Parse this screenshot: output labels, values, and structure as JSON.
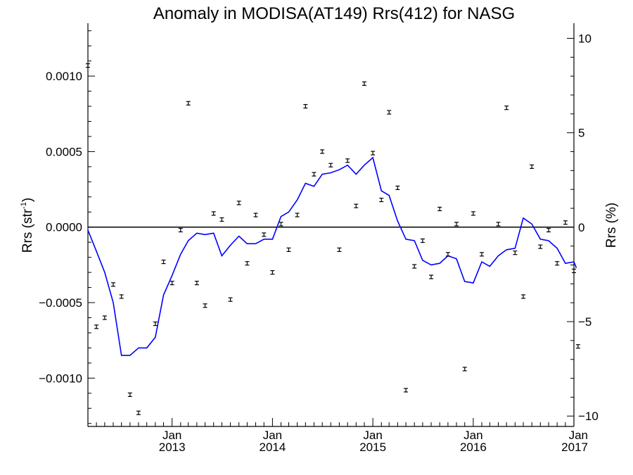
{
  "chart_data": {
    "type": "scatter",
    "title": "Anomaly in MODISA(AT149) Rrs(412) for NASG",
    "ylabel_left": "Rrs (str",
    "ylabel_left_sup": "-1",
    "ylabel_left_close": ")",
    "ylabel_right": "Rrs (%)",
    "xlabel": "",
    "x_range": [
      "2012-03-01",
      "2017-01-01"
    ],
    "ylim_left": [
      -0.00132,
      0.00135
    ],
    "ylim_right": [
      -10.55,
      10.8
    ],
    "grid": false,
    "legend": "none",
    "zero_line": true,
    "colors": {
      "line": "#0000ff",
      "points": "#000000",
      "axes": "#000000",
      "zero_line": "#000000"
    },
    "x_ticks": [
      {
        "x": "2013-01-01",
        "month": "Jan",
        "year": "2013"
      },
      {
        "x": "2014-01-01",
        "month": "Jan",
        "year": "2014"
      },
      {
        "x": "2015-01-01",
        "month": "Jan",
        "year": "2015"
      },
      {
        "x": "2016-01-01",
        "month": "Jan",
        "year": "2016"
      },
      {
        "x": "2017-01-01",
        "month": "Jan",
        "year": "2017"
      }
    ],
    "y_ticks_left": [
      {
        "value": 0.001,
        "label": "0.0010"
      },
      {
        "value": 0.0005,
        "label": "0.0005"
      },
      {
        "value": 0.0,
        "label": "0.0000"
      },
      {
        "value": -0.0005,
        "label": "−0.0005"
      },
      {
        "value": -0.001,
        "label": "−0.0010"
      }
    ],
    "y_ticks_right": [
      {
        "value": 10,
        "label": "10"
      },
      {
        "value": 5,
        "label": "5"
      },
      {
        "value": 0,
        "label": "0"
      },
      {
        "value": -5,
        "label": "−5"
      },
      {
        "value": -10,
        "label": "−10"
      }
    ],
    "series": [
      {
        "kind": "points",
        "values": [
          [
            "2012-03-01",
            0.00107
          ],
          [
            "2012-04-01",
            -0.00066
          ],
          [
            "2012-05-01",
            -0.0006
          ],
          [
            "2012-06-01",
            -0.00038
          ],
          [
            "2012-07-01",
            -0.00046
          ],
          [
            "2012-08-01",
            -0.00111
          ],
          [
            "2012-09-01",
            -0.00123
          ],
          [
            "2012-11-01",
            -0.00064
          ],
          [
            "2012-12-01",
            -0.00023
          ],
          [
            "2013-01-01",
            -0.00037
          ],
          [
            "2013-02-01",
            -2e-05
          ],
          [
            "2013-03-01",
            0.00082
          ],
          [
            "2013-04-01",
            -0.00037
          ],
          [
            "2013-05-01",
            -0.00052
          ],
          [
            "2013-06-01",
            9e-05
          ],
          [
            "2013-07-01",
            5e-05
          ],
          [
            "2013-08-01",
            -0.00048
          ],
          [
            "2013-09-01",
            0.00016
          ],
          [
            "2013-10-01",
            -0.00024
          ],
          [
            "2013-11-01",
            8e-05
          ],
          [
            "2013-12-01",
            -5e-05
          ],
          [
            "2014-01-01",
            -0.0003
          ],
          [
            "2014-02-01",
            2e-05
          ],
          [
            "2014-03-01",
            -0.00015
          ],
          [
            "2014-04-01",
            8e-05
          ],
          [
            "2014-05-01",
            0.0008
          ],
          [
            "2014-06-01",
            0.00035
          ],
          [
            "2014-07-01",
            0.0005
          ],
          [
            "2014-08-01",
            0.00041
          ],
          [
            "2014-09-01",
            -0.00015
          ],
          [
            "2014-10-01",
            0.00044
          ],
          [
            "2014-11-01",
            0.00014
          ],
          [
            "2014-12-01",
            0.00095
          ],
          [
            "2015-01-01",
            0.00049
          ],
          [
            "2015-02-01",
            0.00018
          ],
          [
            "2015-03-01",
            0.00076
          ],
          [
            "2015-04-01",
            0.00026
          ],
          [
            "2015-05-01",
            -0.00108
          ],
          [
            "2015-06-01",
            -0.00026
          ],
          [
            "2015-07-01",
            -9e-05
          ],
          [
            "2015-08-01",
            -0.00033
          ],
          [
            "2015-09-01",
            0.00012
          ],
          [
            "2015-10-01",
            -0.00018
          ],
          [
            "2015-11-01",
            2e-05
          ],
          [
            "2015-12-01",
            -0.00094
          ],
          [
            "2016-01-01",
            9e-05
          ],
          [
            "2016-02-01",
            -0.00018
          ],
          [
            "2016-04-01",
            2e-05
          ],
          [
            "2016-05-01",
            0.00079
          ],
          [
            "2016-06-01",
            -0.00017
          ],
          [
            "2016-07-01",
            -0.00046
          ],
          [
            "2016-08-01",
            0.0004
          ],
          [
            "2016-09-01",
            -0.00013
          ],
          [
            "2016-10-01",
            -2e-05
          ],
          [
            "2016-11-01",
            -0.00024
          ],
          [
            "2016-12-01",
            3e-05
          ],
          [
            "2017-01-01",
            -0.00029
          ],
          [
            "2017-01-16",
            -0.00079
          ]
        ]
      },
      {
        "kind": "line",
        "values": [
          [
            "2012-03-01",
            -2e-05
          ],
          [
            "2012-04-01",
            -0.00016
          ],
          [
            "2012-05-01",
            -0.0003
          ],
          [
            "2012-06-01",
            -0.0005
          ],
          [
            "2012-07-01",
            -0.00085
          ],
          [
            "2012-08-01",
            -0.00085
          ],
          [
            "2012-09-01",
            -0.0008
          ],
          [
            "2012-10-01",
            -0.0008
          ],
          [
            "2012-11-01",
            -0.00073
          ],
          [
            "2012-12-01",
            -0.00045
          ],
          [
            "2013-01-01",
            -0.00032
          ],
          [
            "2013-02-01",
            -0.00018
          ],
          [
            "2013-03-01",
            -9e-05
          ],
          [
            "2013-04-01",
            -4e-05
          ],
          [
            "2013-05-01",
            -5e-05
          ],
          [
            "2013-06-01",
            -4e-05
          ],
          [
            "2013-07-01",
            -0.00019
          ],
          [
            "2013-08-01",
            -0.00012
          ],
          [
            "2013-09-01",
            -6e-05
          ],
          [
            "2013-10-01",
            -0.00011
          ],
          [
            "2013-11-01",
            -0.00011
          ],
          [
            "2013-12-01",
            -8e-05
          ],
          [
            "2014-01-01",
            -8e-05
          ],
          [
            "2014-02-01",
            7e-05
          ],
          [
            "2014-03-01",
            0.0001
          ],
          [
            "2014-04-01",
            0.00018
          ],
          [
            "2014-05-01",
            0.00029
          ],
          [
            "2014-06-01",
            0.00027
          ],
          [
            "2014-07-01",
            0.00035
          ],
          [
            "2014-08-01",
            0.00036
          ],
          [
            "2014-09-01",
            0.00038
          ],
          [
            "2014-10-01",
            0.00041
          ],
          [
            "2014-11-01",
            0.00035
          ],
          [
            "2014-12-01",
            0.00041
          ],
          [
            "2015-01-01",
            0.00046
          ],
          [
            "2015-02-01",
            0.00024
          ],
          [
            "2015-03-01",
            0.00021
          ],
          [
            "2015-04-01",
            4e-05
          ],
          [
            "2015-05-01",
            -8e-05
          ],
          [
            "2015-06-01",
            -9e-05
          ],
          [
            "2015-07-01",
            -0.00022
          ],
          [
            "2015-08-01",
            -0.00025
          ],
          [
            "2015-09-01",
            -0.00024
          ],
          [
            "2015-10-01",
            -0.00019
          ],
          [
            "2015-11-01",
            -0.00021
          ],
          [
            "2015-12-01",
            -0.00036
          ],
          [
            "2016-01-01",
            -0.00037
          ],
          [
            "2016-02-01",
            -0.00023
          ],
          [
            "2016-03-01",
            -0.00026
          ],
          [
            "2016-04-01",
            -0.00019
          ],
          [
            "2016-05-01",
            -0.00015
          ],
          [
            "2016-06-01",
            -0.00014
          ],
          [
            "2016-07-01",
            6e-05
          ],
          [
            "2016-08-01",
            2e-05
          ],
          [
            "2016-09-01",
            -8e-05
          ],
          [
            "2016-10-01",
            -9e-05
          ],
          [
            "2016-11-01",
            -0.00014
          ],
          [
            "2016-12-01",
            -0.00024
          ],
          [
            "2017-01-01",
            -0.00023
          ],
          [
            "2017-01-10",
            -0.00027
          ]
        ]
      }
    ]
  }
}
